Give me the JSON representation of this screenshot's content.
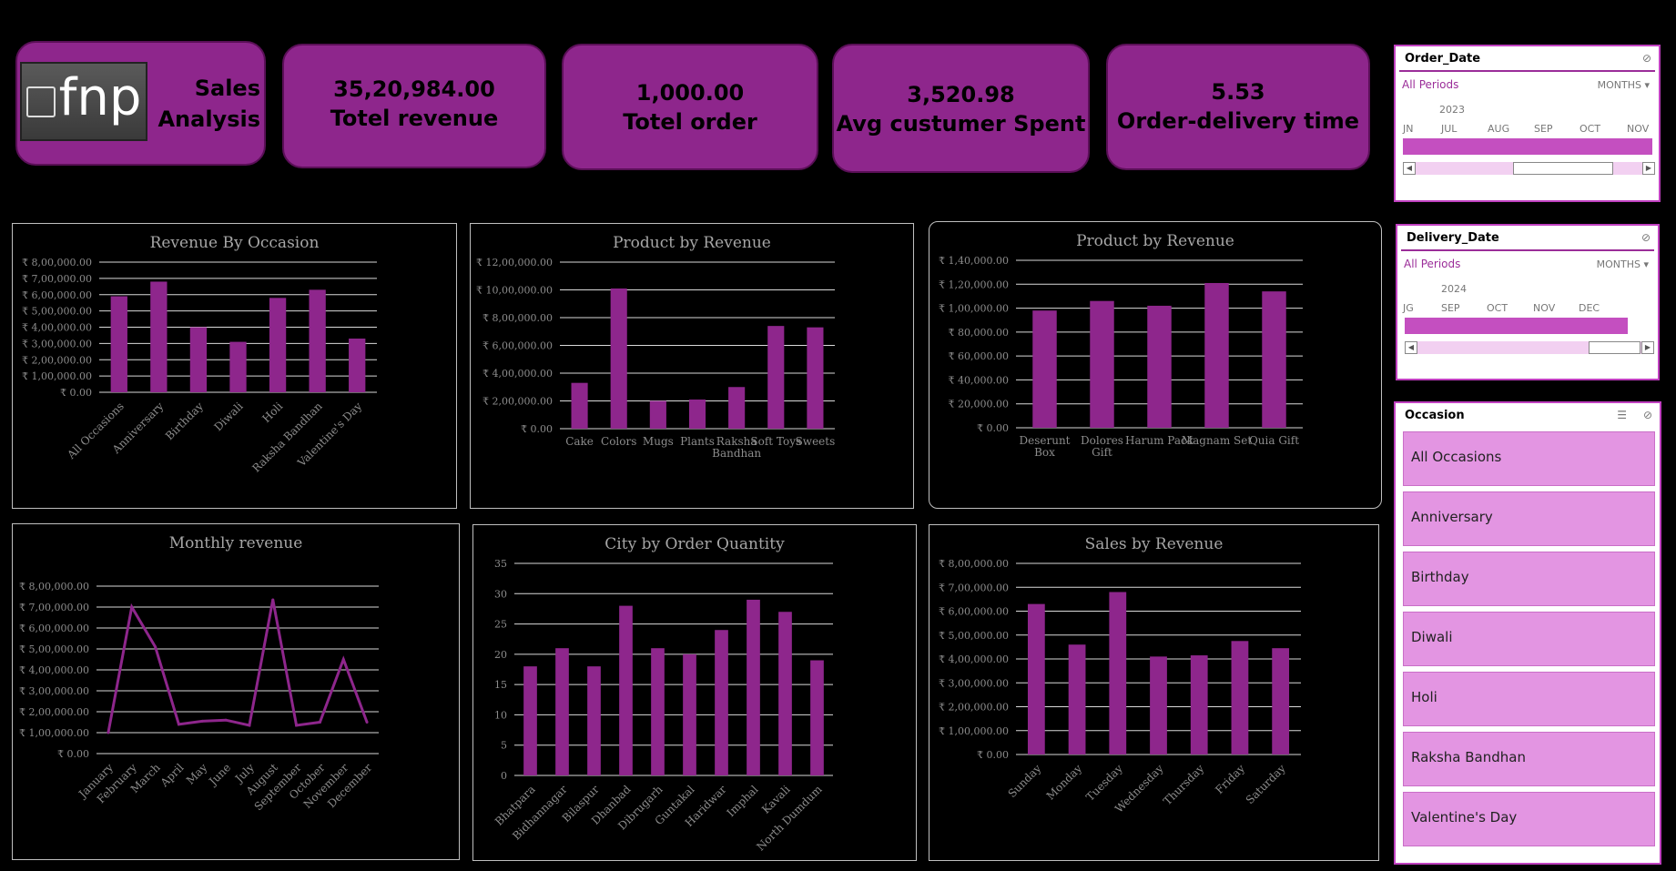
{
  "header": {
    "logo_text": "fnp",
    "title_line1": "Sales",
    "title_line2": "Analysis"
  },
  "kpis": [
    {
      "value": "35,20,984.00",
      "label": "Totel revenue"
    },
    {
      "value": "1,000.00",
      "label": "Totel order"
    },
    {
      "value": "3,520.98",
      "label": "Avg custumer Spent"
    },
    {
      "value": "5.53",
      "label": "Order-delivery time"
    }
  ],
  "colors": {
    "accent": "#8e268c",
    "bar": "#8e268c",
    "slicer_item": "#e395e2"
  },
  "slicers": {
    "order_date": {
      "title": "Order_Date",
      "all_label": "All Periods",
      "unit_label": "MONTHS",
      "year": "2023",
      "months": [
        "JN",
        "JUL",
        "AUG",
        "SEP",
        "OCT",
        "NOV"
      ]
    },
    "delivery_date": {
      "title": "Delivery_Date",
      "all_label": "All Periods",
      "unit_label": "MONTHS",
      "year": "2024",
      "months": [
        "JG",
        "SEP",
        "OCT",
        "NOV",
        "DEC"
      ]
    },
    "occasion": {
      "title": "Occasion",
      "items": [
        "All Occasions",
        "Anniversary",
        "Birthday",
        "Diwali",
        "Holi",
        "Raksha Bandhan",
        "Valentine's Day"
      ]
    }
  },
  "chart_data": [
    {
      "id": "revenue_by_occasion",
      "type": "bar",
      "title": "Revenue By Occasion",
      "categories": [
        "All Occasions",
        "Anniversary",
        "Birthday",
        "Diwali",
        "Holi",
        "Raksha Bandhan",
        "Valentine's Day"
      ],
      "values": [
        590000,
        680000,
        400000,
        310000,
        580000,
        630000,
        330000
      ],
      "ylim": [
        0,
        800000
      ],
      "ticks": [
        "₹ 0.00",
        "₹ 1,00,000.00",
        "₹ 2,00,000.00",
        "₹ 3,00,000.00",
        "₹ 4,00,000.00",
        "₹ 5,00,000.00",
        "₹ 6,00,000.00",
        "₹ 7,00,000.00",
        "₹ 8,00,000.00"
      ],
      "grid": true,
      "xrotate": true
    },
    {
      "id": "product_by_revenue_1",
      "type": "bar",
      "title": "Product by Revenue",
      "categories": [
        "Cake",
        "Colors",
        "Mugs",
        "Plants",
        "Raksha Bandhan",
        "Soft Toys",
        "Sweets"
      ],
      "values": [
        330000,
        1010000,
        200000,
        210000,
        300000,
        740000,
        730000
      ],
      "ylim": [
        0,
        1200000
      ],
      "ticks": [
        "₹ 0.00",
        "₹ 2,00,000.00",
        "₹ 4,00,000.00",
        "₹ 6,00,000.00",
        "₹ 8,00,000.00",
        "₹ 10,00,000.00",
        "₹ 12,00,000.00"
      ],
      "grid": true,
      "xrotate": false
    },
    {
      "id": "product_by_revenue_2",
      "type": "bar",
      "title": "Product  by Revenue",
      "categories": [
        "Deserunt Box",
        "Dolores Gift",
        "Harum Pack",
        "Magnam Set",
        "Quia Gift"
      ],
      "values": [
        98000,
        106000,
        102000,
        121000,
        114000
      ],
      "ylim": [
        0,
        140000
      ],
      "ticks": [
        "₹ 0.00",
        "₹ 20,000.00",
        "₹ 40,000.00",
        "₹ 60,000.00",
        "₹ 80,000.00",
        "₹ 1,00,000.00",
        "₹ 1,20,000.00",
        "₹ 1,40,000.00"
      ],
      "grid": true,
      "xrotate": false
    },
    {
      "id": "monthly_revenue",
      "type": "line",
      "title": "Monthly revenue",
      "categories": [
        "January",
        "February",
        "March",
        "April",
        "May",
        "June",
        "July",
        "August",
        "September",
        "October",
        "November",
        "December"
      ],
      "values": [
        100000,
        700000,
        510000,
        140000,
        155000,
        160000,
        135000,
        735000,
        135000,
        150000,
        450000,
        150000
      ],
      "ylim": [
        0,
        800000
      ],
      "ticks": [
        "₹ 0.00",
        "₹ 1,00,000.00",
        "₹ 2,00,000.00",
        "₹ 3,00,000.00",
        "₹ 4,00,000.00",
        "₹ 5,00,000.00",
        "₹ 6,00,000.00",
        "₹ 7,00,000.00",
        "₹ 8,00,000.00"
      ],
      "grid": true,
      "xrotate": true
    },
    {
      "id": "city_by_order_quantity",
      "type": "bar",
      "title": "City by Order Quantity",
      "categories": [
        "Bhatpara",
        "Bidhannagar",
        "Bilaspur",
        "Dhanbad",
        "Dibrugarh",
        "Guntakal",
        "Haridwar",
        "Imphal",
        "Kavali",
        "North Dumdum"
      ],
      "values": [
        18,
        21,
        18,
        28,
        21,
        20,
        24,
        29,
        27,
        19
      ],
      "ylim": [
        0,
        35
      ],
      "ticks": [
        "0",
        "5",
        "10",
        "15",
        "20",
        "25",
        "30",
        "35"
      ],
      "grid": true,
      "xrotate": true
    },
    {
      "id": "sales_by_revenue",
      "type": "bar",
      "title": "Sales by Revenue",
      "categories": [
        "Sunday",
        "Monday",
        "Tuesday",
        "Wednesday",
        "Thursday",
        "Friday",
        "Saturday"
      ],
      "values": [
        630000,
        460000,
        680000,
        410000,
        415000,
        475000,
        445000
      ],
      "ylim": [
        0,
        800000
      ],
      "ticks": [
        "₹ 0.00",
        "₹ 1,00,000.00",
        "₹ 2,00,000.00",
        "₹ 3,00,000.00",
        "₹ 4,00,000.00",
        "₹ 5,00,000.00",
        "₹ 6,00,000.00",
        "₹ 7,00,000.00",
        "₹ 8,00,000.00"
      ],
      "grid": true,
      "xrotate": true
    }
  ]
}
